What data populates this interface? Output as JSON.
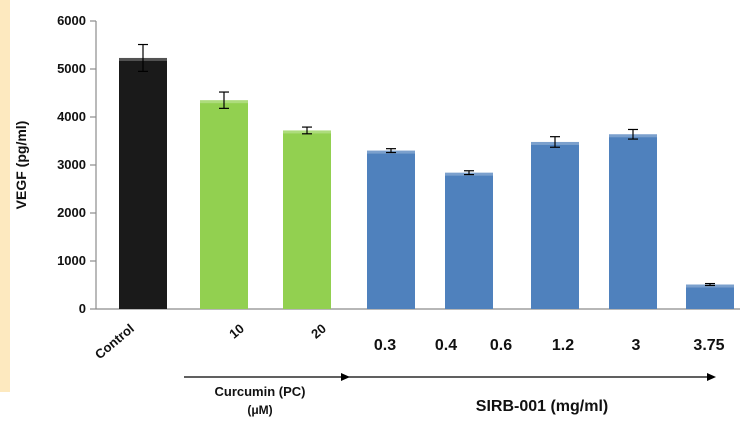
{
  "colors": {
    "page_background": "#ffffff",
    "left_strip": "#fde9bf",
    "axis": "#8c8c8c",
    "text": "#111111",
    "control_bar": "#1a1a1a",
    "curcumin_bar": "#92d050",
    "sirb_bar": "#4f81bd"
  },
  "chart_data": {
    "type": "bar",
    "ylabel": "VEGF (pg/ml)",
    "ylim": [
      0,
      6000
    ],
    "yticks": [
      0,
      1000,
      2000,
      3000,
      4000,
      5000,
      6000
    ],
    "grid": false,
    "legend": "none",
    "categories": [
      "Control",
      "10",
      "20",
      "0.3",
      "0.4",
      "0.6",
      "1.2",
      "3",
      "3.75"
    ],
    "category_label_style": [
      "rotated",
      "rotated",
      "rotated",
      "horizontal",
      "horizontal",
      "horizontal",
      "horizontal",
      "horizontal",
      "horizontal"
    ],
    "values": [
      5230,
      4350,
      3720,
      3300,
      2840,
      3480,
      3640,
      null,
      510
    ],
    "errors": [
      280,
      170,
      70,
      40,
      40,
      110,
      100,
      null,
      20
    ],
    "bar_color_keys": [
      "control_bar",
      "curcumin_bar",
      "curcumin_bar",
      "sirb_bar",
      "sirb_bar",
      "sirb_bar",
      "sirb_bar",
      "sirb_bar",
      "sirb_bar"
    ],
    "groups": [
      {
        "label_line1": "Curcumin (PC)",
        "label_line2": "(μM)",
        "from": 1,
        "to": 2
      },
      {
        "label_line1": "SIRB-001 (mg/ml)",
        "label_line2": "",
        "from": 3,
        "to": 8
      }
    ]
  }
}
